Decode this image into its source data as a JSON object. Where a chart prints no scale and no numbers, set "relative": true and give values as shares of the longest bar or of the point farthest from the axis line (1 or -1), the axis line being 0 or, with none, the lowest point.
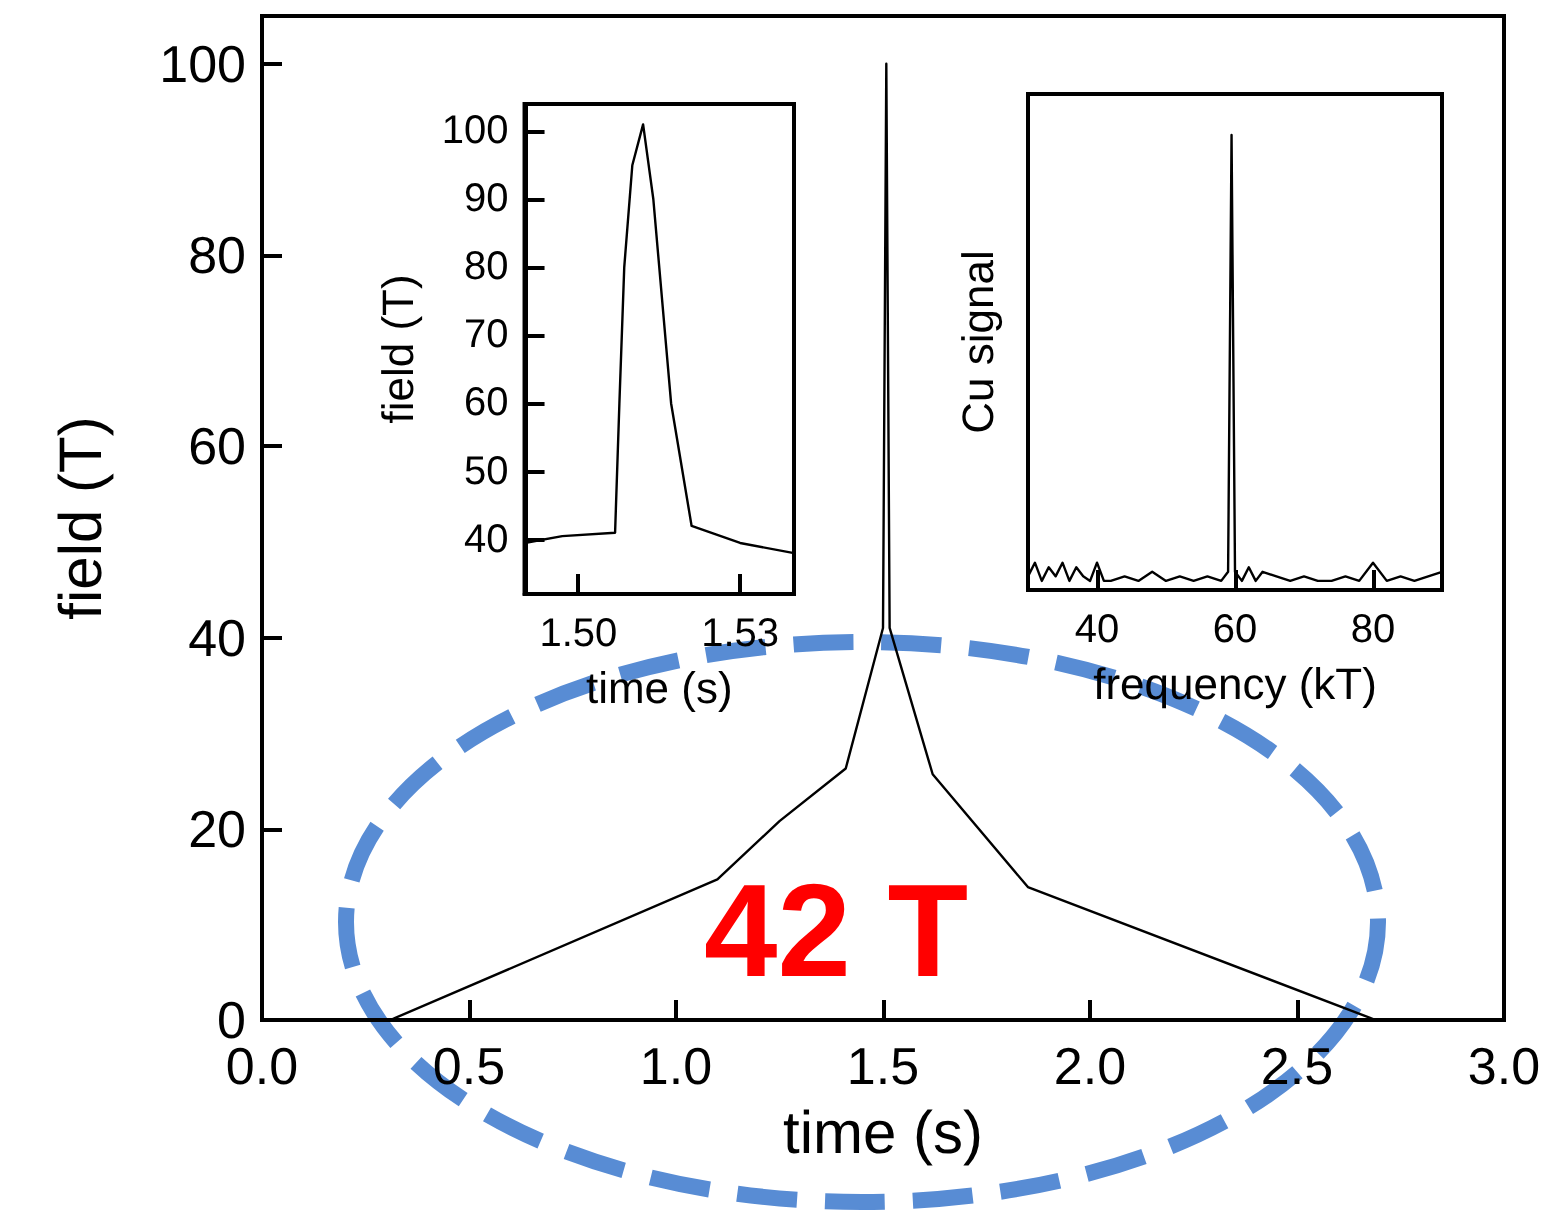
{
  "chart_data": [
    {
      "type": "line",
      "xlabel": "time (s)",
      "ylabel": "field (T)",
      "annotations": [
        "42 T"
      ],
      "x": [
        0.31,
        1.1,
        1.25,
        1.41,
        1.5,
        1.508,
        1.516,
        1.62,
        1.85,
        2.69
      ],
      "values": [
        0,
        14.7,
        20.8,
        26.3,
        41,
        100,
        41,
        25.7,
        13.9,
        0
      ],
      "color": "#000000",
      "xlim": [
        0,
        3
      ],
      "xticks": [
        {
          "value": 0,
          "label": "0.0"
        },
        {
          "value": 0.5,
          "label": "0.5"
        },
        {
          "value": 1,
          "label": "1.0"
        },
        {
          "value": 1.5,
          "label": "1.5"
        },
        {
          "value": 2,
          "label": "2.0"
        },
        {
          "value": 2.5,
          "label": "2.5"
        },
        {
          "value": 3,
          "label": "3.0"
        }
      ],
      "ylim": [
        0,
        105
      ],
      "yticks": [
        0,
        20,
        40,
        60,
        80,
        100
      ],
      "marker": "none"
    },
    {
      "type": "line",
      "xlabel": "time (s)",
      "ylabel": "field (T)",
      "x": [
        1.49,
        1.497,
        1.5068,
        1.5076,
        1.5085,
        1.51,
        1.512,
        1.5139,
        1.5172,
        1.521,
        1.53,
        1.54
      ],
      "values": [
        39.5,
        40.5,
        41,
        60,
        80,
        95,
        101,
        90,
        60,
        42,
        39.5,
        38
      ],
      "color": "#000000",
      "xlim": [
        1.49,
        1.54
      ],
      "xticks": [
        {
          "value": 1.5,
          "label": "1.50"
        },
        {
          "value": 1.53,
          "label": "1.53"
        }
      ],
      "ylim": [
        32,
        104
      ],
      "yticks": [
        40,
        50,
        60,
        70,
        80,
        90,
        100
      ],
      "marker": "none"
    },
    {
      "type": "line",
      "xlabel": "frequency (kT)",
      "ylabel": "Cu signal",
      "relative": true,
      "tick_labels": "x",
      "x": [
        30,
        31,
        32,
        33,
        34,
        35,
        36,
        37,
        38,
        39,
        40,
        41,
        42,
        44,
        46,
        48,
        50,
        52,
        54,
        56,
        58,
        59,
        59.5,
        60,
        61,
        62,
        63,
        64,
        66,
        68,
        70,
        72,
        74,
        76,
        78,
        80,
        82,
        84,
        86,
        88,
        90
      ],
      "values": [
        0.03,
        0.06,
        0.02,
        0.05,
        0.03,
        0.06,
        0.02,
        0.05,
        0.03,
        0.02,
        0.06,
        0.02,
        0.02,
        0.03,
        0.02,
        0.04,
        0.02,
        0.03,
        0.02,
        0.03,
        0.02,
        0.04,
        1,
        0.04,
        0.02,
        0.05,
        0.02,
        0.04,
        0.03,
        0.02,
        0.03,
        0.02,
        0.02,
        0.03,
        0.02,
        0.06,
        0.02,
        0.03,
        0.02,
        0.03,
        0.04
      ],
      "color": "#000000",
      "xlim": [
        30,
        90
      ],
      "xticks": [
        40,
        60,
        80
      ],
      "marker": "none"
    }
  ]
}
